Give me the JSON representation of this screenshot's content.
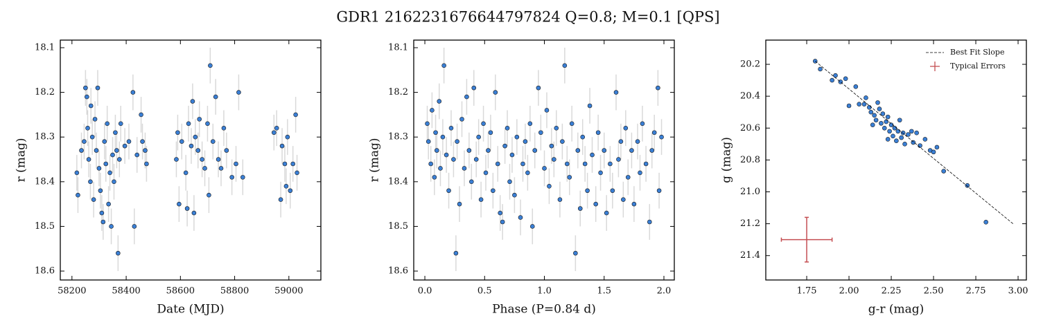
{
  "title": "GDR1 2162231676644797824  Q=0.8; M=0.1 [QPS]",
  "chart_data": [
    {
      "type": "scatter",
      "xlabel": "Date (MJD)",
      "ylabel": "r (mag)",
      "xlim": [
        58157,
        59118
      ],
      "ylim": [
        18.62,
        18.083
      ],
      "xticks": [
        58200,
        58400,
        58600,
        58800,
        59000
      ],
      "yticks": [
        18.1,
        18.2,
        18.3,
        18.4,
        18.5,
        18.6
      ],
      "series": [
        {
          "color": "#3a7fd5",
          "yerr": 0.04,
          "x": [
            58218,
            58222,
            58235,
            58245,
            58250,
            58255,
            58258,
            58262,
            58268,
            58270,
            58275,
            58280,
            58285,
            58290,
            58295,
            58300,
            58305,
            58310,
            58315,
            58320,
            58325,
            58330,
            58335,
            58340,
            58345,
            58350,
            58355,
            58360,
            58365,
            58370,
            58375,
            58380,
            58395,
            58410,
            58425,
            58430,
            58440,
            58455,
            58460,
            58470,
            58475,
            58585,
            58590,
            58595,
            58605,
            58620,
            58625,
            58630,
            58640,
            58645,
            58650,
            58655,
            58665,
            58670,
            58680,
            58690,
            58700,
            58705,
            58710,
            58720,
            58730,
            58740,
            58750,
            58760,
            58770,
            58790,
            58805,
            58815,
            58830,
            58945,
            58955,
            58970,
            58975,
            58985,
            58990,
            58995,
            59005,
            59015,
            59025,
            59030
          ],
          "y": [
            18.38,
            18.43,
            18.33,
            18.31,
            18.19,
            18.21,
            18.28,
            18.35,
            18.4,
            18.23,
            18.3,
            18.44,
            18.26,
            18.33,
            18.19,
            18.37,
            18.42,
            18.47,
            18.49,
            18.31,
            18.36,
            18.27,
            18.45,
            18.38,
            18.5,
            18.34,
            18.4,
            18.29,
            18.33,
            18.56,
            18.35,
            18.27,
            18.32,
            18.31,
            18.2,
            18.5,
            18.34,
            18.25,
            18.31,
            18.33,
            18.36,
            18.35,
            18.29,
            18.45,
            18.31,
            18.38,
            18.46,
            18.27,
            18.32,
            18.22,
            18.47,
            18.3,
            18.33,
            18.26,
            18.35,
            18.37,
            18.27,
            18.43,
            18.14,
            18.31,
            18.21,
            18.35,
            18.37,
            18.28,
            18.33,
            18.39,
            18.36,
            18.2,
            18.39,
            18.29,
            18.28,
            18.44,
            18.32,
            18.36,
            18.41,
            18.3,
            18.42,
            18.36,
            18.25,
            18.38
          ]
        }
      ]
    },
    {
      "type": "scatter",
      "xlabel": "Phase (P=0.84 d)",
      "ylabel": "r (mag)",
      "xlim": [
        -0.093,
        2.087
      ],
      "ylim": [
        18.62,
        18.083
      ],
      "xticks": [
        {
          "value": 0,
          "label": "0.0"
        },
        0.5,
        {
          "value": 1,
          "label": "1.0"
        },
        1.5,
        {
          "value": 2,
          "label": "2.0"
        }
      ],
      "yticks": [
        18.1,
        18.2,
        18.3,
        18.4,
        18.5,
        18.6
      ],
      "series": [
        {
          "color": "#3a7fd5",
          "yerr": 0.04,
          "x": [
            0.02,
            0.03,
            0.05,
            0.06,
            0.08,
            0.09,
            0.1,
            0.12,
            0.13,
            0.15,
            0.16,
            0.18,
            0.2,
            0.22,
            0.24,
            0.26,
            0.27,
            0.29,
            0.31,
            0.33,
            0.35,
            0.37,
            0.39,
            0.41,
            0.43,
            0.45,
            0.47,
            0.49,
            0.51,
            0.53,
            0.55,
            0.57,
            0.59,
            0.61,
            0.63,
            0.65,
            0.67,
            0.69,
            0.71,
            0.73,
            0.75,
            0.77,
            0.8,
            0.82,
            0.84,
            0.86,
            0.88,
            0.9,
            0.92,
            0.95,
            0.97,
            1.0,
            1.02,
            1.04,
            1.06,
            1.08,
            1.1,
            1.13,
            1.15,
            1.17,
            1.19,
            1.21,
            1.23,
            1.26,
            1.28,
            1.3,
            1.32,
            1.34,
            1.36,
            1.38,
            1.4,
            1.43,
            1.45,
            1.47,
            1.5,
            1.52,
            1.55,
            1.57,
            1.6,
            1.62,
            1.64,
            1.66,
            1.68,
            1.7,
            1.73,
            1.75,
            1.78,
            1.8,
            1.82,
            1.85,
            1.88,
            1.9,
            1.92,
            1.95,
            1.96,
            1.98
          ],
          "y": [
            18.27,
            18.31,
            18.36,
            18.24,
            18.39,
            18.29,
            18.33,
            18.22,
            18.37,
            18.3,
            18.14,
            18.34,
            18.42,
            18.28,
            18.35,
            18.56,
            18.31,
            18.45,
            18.26,
            18.37,
            18.21,
            18.33,
            18.4,
            18.19,
            18.35,
            18.3,
            18.44,
            18.27,
            18.38,
            18.33,
            18.29,
            18.42,
            18.2,
            18.36,
            18.47,
            18.49,
            18.32,
            18.28,
            18.4,
            18.34,
            18.43,
            18.3,
            18.48,
            18.36,
            18.31,
            18.38,
            18.27,
            18.5,
            18.33,
            18.19,
            18.29,
            18.37,
            18.24,
            18.41,
            18.32,
            18.35,
            18.28,
            18.44,
            18.31,
            18.14,
            18.36,
            18.39,
            18.27,
            18.56,
            18.33,
            18.46,
            18.3,
            18.36,
            18.42,
            18.23,
            18.34,
            18.45,
            18.29,
            18.38,
            18.33,
            18.47,
            18.36,
            18.42,
            18.2,
            18.35,
            18.31,
            18.44,
            18.28,
            18.39,
            18.33,
            18.45,
            18.31,
            18.38,
            18.27,
            18.36,
            18.49,
            18.33,
            18.29,
            18.19,
            18.42,
            18.3
          ]
        }
      ]
    },
    {
      "type": "scatter",
      "xlabel": "g-r (mag)",
      "ylabel": "g (mag)",
      "xlim": [
        1.508,
        3.049
      ],
      "ylim": [
        21.553,
        20.048
      ],
      "xticks": [
        1.75,
        {
          "value": 2,
          "label": "2.00"
        },
        2.25,
        {
          "value": 2.5,
          "label": "2.50"
        },
        2.75,
        {
          "value": 3,
          "label": "3.00"
        }
      ],
      "yticks": [
        20.2,
        20.4,
        20.6,
        20.8,
        {
          "value": 21,
          "label": "21.0"
        },
        21.2,
        21.4
      ],
      "legend": "upper right",
      "series": [
        {
          "color": "#3a7fd5",
          "x": [
            1.8,
            1.83,
            1.9,
            1.92,
            1.95,
            1.98,
            2.0,
            2.04,
            2.06,
            2.09,
            2.1,
            2.12,
            2.13,
            2.15,
            2.16,
            2.17,
            2.18,
            2.19,
            2.2,
            2.21,
            2.22,
            2.23,
            2.24,
            2.25,
            2.26,
            2.27,
            2.28,
            2.29,
            2.3,
            2.31,
            2.32,
            2.33,
            2.35,
            2.37,
            2.38,
            2.4,
            2.42,
            2.45,
            2.48,
            2.5,
            2.52,
            2.56,
            2.7,
            2.81,
            2.14,
            2.23
          ],
          "y": [
            20.18,
            20.23,
            20.3,
            20.27,
            20.31,
            20.29,
            20.46,
            20.34,
            20.45,
            20.45,
            20.41,
            20.47,
            20.5,
            20.52,
            20.55,
            20.44,
            20.48,
            20.57,
            20.51,
            20.6,
            20.56,
            20.53,
            20.62,
            20.58,
            20.65,
            20.6,
            20.68,
            20.62,
            20.55,
            20.66,
            20.63,
            20.7,
            20.64,
            20.62,
            20.69,
            20.63,
            20.71,
            20.67,
            20.74,
            20.75,
            20.72,
            20.87,
            20.96,
            21.19,
            20.58,
            20.67
          ]
        }
      ],
      "best_fit": {
        "name": "Best Fit Slope",
        "color": "#000000",
        "x": [
          1.8,
          2.97
        ],
        "y": [
          20.18,
          21.2
        ]
      },
      "typical_errors": {
        "name": "Typical Errors",
        "color": "#c44e52",
        "x": 1.75,
        "y": 21.3,
        "xerr": 0.15,
        "yerr": 0.14
      }
    }
  ]
}
